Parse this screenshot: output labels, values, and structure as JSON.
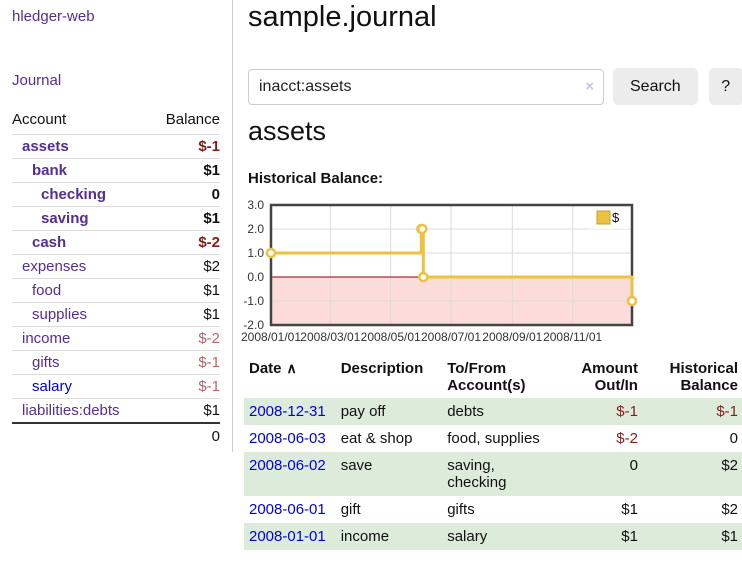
{
  "app_title": "hledger-web",
  "colors": {
    "link_purple": "#552e91",
    "link_blue": "#0000dd",
    "negative_strong": "#8b1a1a",
    "negative_soft": "#bb6666",
    "row_stripe_green": "#ddebdb",
    "chart_line_yellow": "#edc240",
    "chart_negative_fill": "#fcdcda",
    "chart_zero_line": "#8b0000",
    "chart_border": "#444444",
    "button_gray": "#ececec"
  },
  "sidebar": {
    "journal_link": "Journal",
    "table": {
      "col_account": "Account",
      "col_balance": "Balance",
      "rows": [
        {
          "name": "assets",
          "balance": "$-1"
        },
        {
          "name": "bank",
          "balance": "$1"
        },
        {
          "name": "checking",
          "balance": "0"
        },
        {
          "name": "saving",
          "balance": "$1"
        },
        {
          "name": "cash",
          "balance": "$-2"
        },
        {
          "name": "expenses",
          "balance": "$2"
        },
        {
          "name": "food",
          "balance": "$1"
        },
        {
          "name": "supplies",
          "balance": "$1"
        },
        {
          "name": "income",
          "balance": "$-2"
        },
        {
          "name": "gifts",
          "balance": "$-1"
        },
        {
          "name": "salary",
          "balance": "$-1"
        },
        {
          "name": "liabilities:debts",
          "balance": "$1"
        }
      ],
      "total": "0"
    }
  },
  "main": {
    "title": "sample.journal",
    "search": {
      "value": "inacct:assets",
      "clear_icon": "×",
      "search_button": "Search",
      "help_button": "?"
    },
    "account_heading": "assets",
    "chart_heading": "Historical Balance:"
  },
  "chart_data": {
    "type": "line",
    "title": "Historical Balance",
    "step": true,
    "series": [
      {
        "name": "$",
        "color": "#edc240",
        "points": [
          {
            "date": "2008-01-01",
            "value": 1
          },
          {
            "date": "2008-06-01",
            "value": 2
          },
          {
            "date": "2008-06-02",
            "value": 2
          },
          {
            "date": "2008-06-03",
            "value": 0
          },
          {
            "date": "2008-12-31",
            "value": -1
          }
        ]
      }
    ],
    "x_ticks": [
      "2008/01/01",
      "2008/03/01",
      "2008/05/01",
      "2008/07/01",
      "2008/09/01",
      "2008/11/01"
    ],
    "y_ticks": [
      3,
      2,
      1,
      0,
      -1,
      -2
    ],
    "xlim": [
      "2008-01-01",
      "2008-12-31"
    ],
    "ylim": [
      -2,
      3
    ],
    "grid": true,
    "legend_position": "top-right",
    "negative_region_color": "#fcdcda",
    "zero_line_color": "#8b0000"
  },
  "register": {
    "headers": {
      "date": "Date",
      "description": "Description",
      "accounts": "To/From Account(s)",
      "amount": "Amount Out/In",
      "balance": "Historical Balance"
    },
    "sort_icon": "∧",
    "rows": [
      {
        "date": "2008-12-31",
        "description": "pay off",
        "accounts": "debts",
        "amount": "$-1",
        "balance": "$-1"
      },
      {
        "date": "2008-06-03",
        "description": "eat & shop",
        "accounts": "food, supplies",
        "amount": "$-2",
        "balance": "0"
      },
      {
        "date": "2008-06-02",
        "description": "save",
        "accounts": "saving, checking",
        "amount": "0",
        "balance": "$2"
      },
      {
        "date": "2008-06-01",
        "description": "gift",
        "accounts": "gifts",
        "amount": "$1",
        "balance": "$2"
      },
      {
        "date": "2008-01-01",
        "description": "income",
        "accounts": "salary",
        "amount": "$1",
        "balance": "$1"
      }
    ]
  }
}
